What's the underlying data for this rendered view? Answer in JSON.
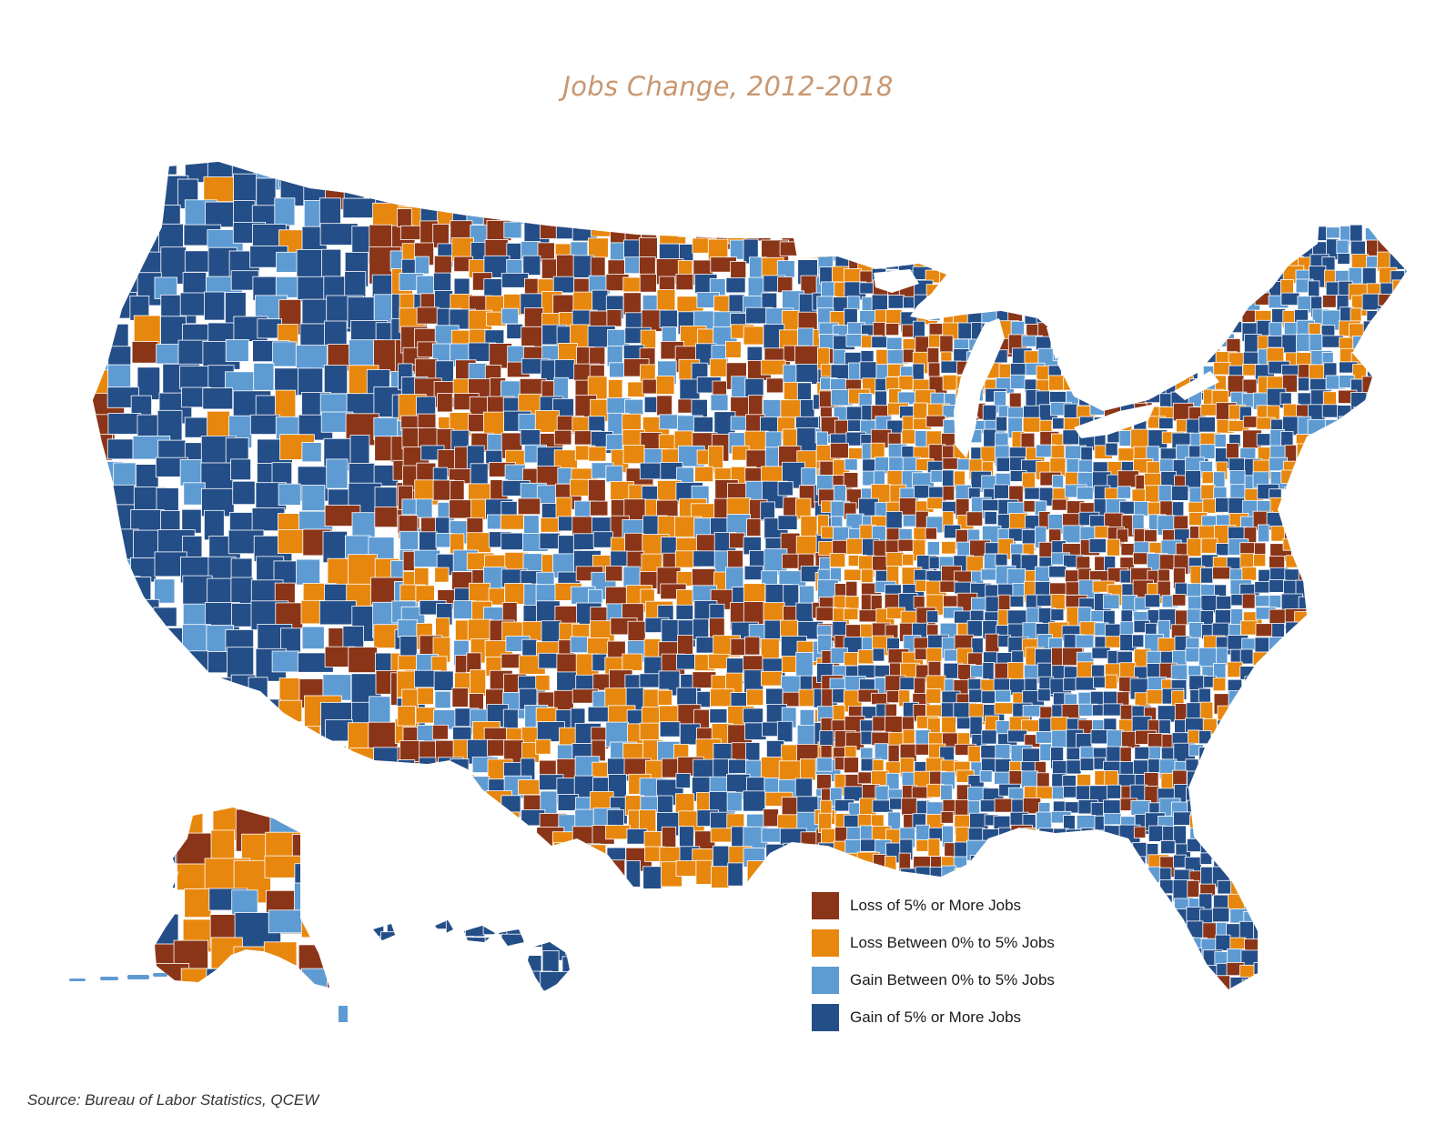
{
  "title": "Jobs Change, 2012-2018",
  "source": "Source: Bureau of Labor Statistics, QCEW",
  "legend": [
    {
      "label": "Loss of 5% or More Jobs",
      "color": "#8b3518"
    },
    {
      "label": "Loss Between 0% to 5% Jobs",
      "color": "#e8870d"
    },
    {
      "label": "Gain Between 0% to 5% Jobs",
      "color": "#5e9bd3"
    },
    {
      "label": "Gain of 5% or More Jobs",
      "color": "#244e88"
    }
  ],
  "colors": {
    "background": "#ffffff",
    "title": "#c99770",
    "border": "#ffffff",
    "no_data": "#ffffff"
  }
}
